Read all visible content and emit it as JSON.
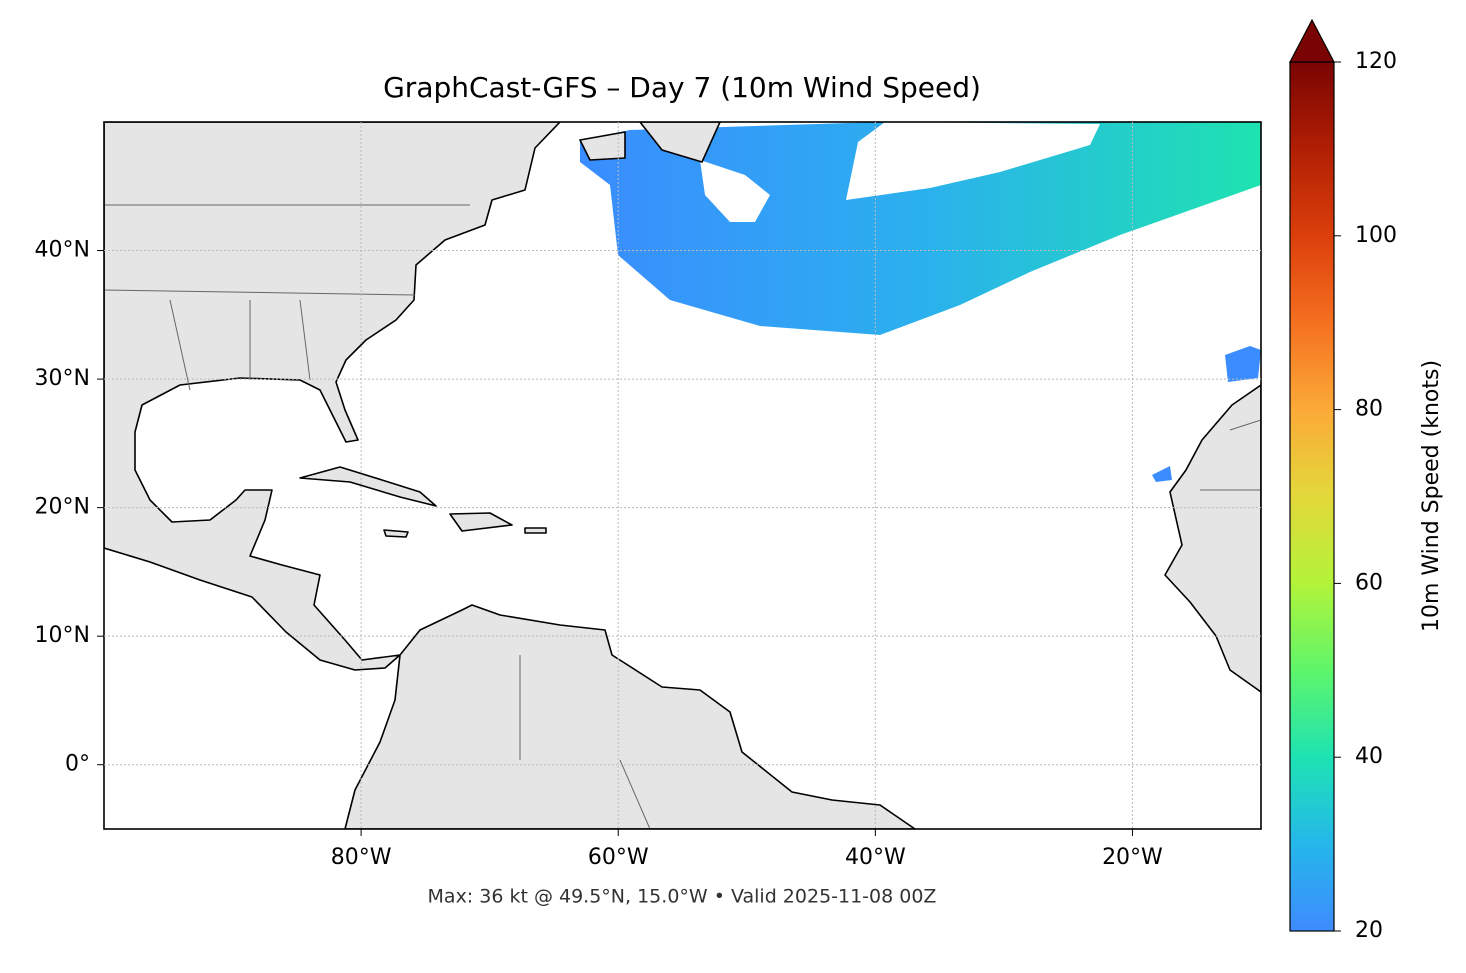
{
  "chart_data": {
    "type": "map",
    "title": "GraphCast-GFS – Day 7 (10m Wind Speed)",
    "footer": "Max: 36 kt @ 49.5°N, 15.0°W • Valid 2025-11-08 00Z",
    "xlim": [
      -100,
      -10
    ],
    "ylim": [
      -5,
      50
    ],
    "xticks": [
      {
        "value": -80,
        "label": "80°W"
      },
      {
        "value": -60,
        "label": "60°W"
      },
      {
        "value": -40,
        "label": "40°W"
      },
      {
        "value": -20,
        "label": "20°W"
      }
    ],
    "yticks": [
      {
        "value": 0,
        "label": "0°"
      },
      {
        "value": 10,
        "label": "10°N"
      },
      {
        "value": 20,
        "label": "20°N"
      },
      {
        "value": 30,
        "label": "30°N"
      },
      {
        "value": 40,
        "label": "40°N"
      }
    ],
    "grid": true,
    "colorbar": {
      "label": "10m Wind Speed (knots)",
      "lim": [
        20,
        120
      ],
      "ticks": [
        20,
        40,
        60,
        80,
        100,
        120
      ]
    }
  }
}
